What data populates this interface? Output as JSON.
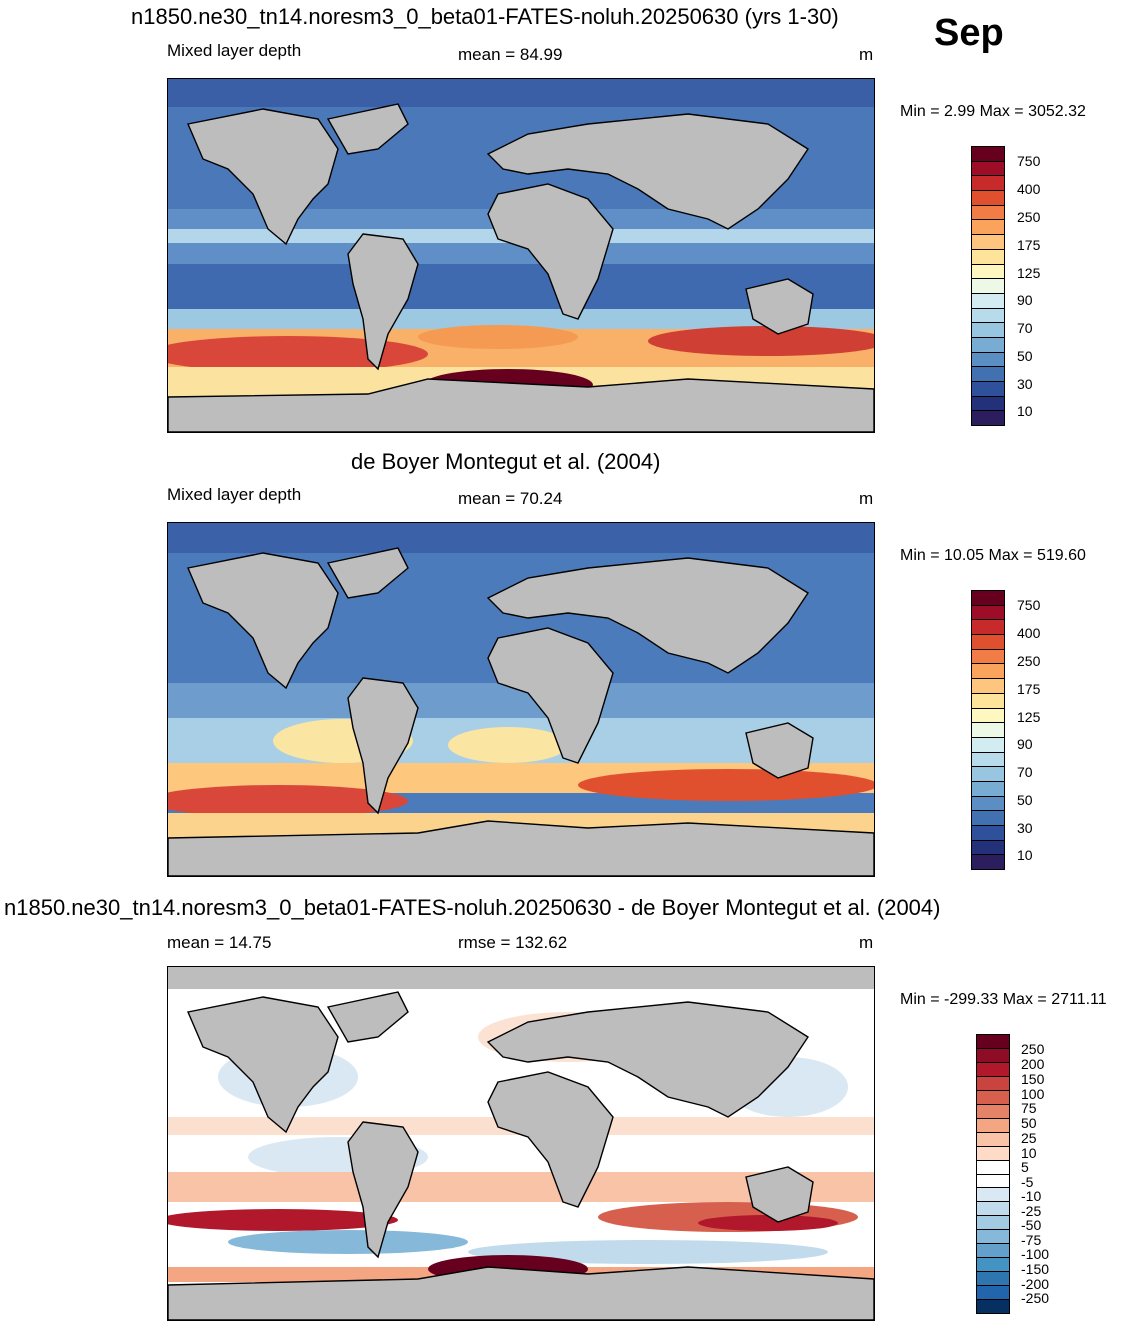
{
  "month": "Sep",
  "panels": [
    {
      "title": "n1850.ne30_tn14.noresm3_0_beta01-FATES-noluh.20250630 (yrs 1-30)",
      "left_label": "Mixed layer depth",
      "center_label": "mean =  84.99",
      "units": "m",
      "minmax": "Min =   2.99 Max = 3052.32"
    },
    {
      "title": "de Boyer Montegut et al. (2004)",
      "left_label": "Mixed layer depth",
      "center_label": "mean =  70.24",
      "units": "m",
      "minmax": "Min =  10.05 Max = 519.60"
    },
    {
      "title": "n1850.ne30_tn14.noresm3_0_beta01-FATES-noluh.20250630 - de Boyer Montegut et al. (2004)",
      "left_label": "mean =  14.75",
      "center_label": "rmse = 132.62",
      "units": "m",
      "minmax": "Min = -299.33 Max = 2711.11"
    }
  ],
  "mld_colorbar": {
    "labels": [
      "750",
      "400",
      "250",
      "175",
      "125",
      "90",
      "70",
      "50",
      "30",
      "10"
    ],
    "colors": [
      "#67001f",
      "#9e0d28",
      "#c62a2b",
      "#e0502f",
      "#f17c45",
      "#f9a35c",
      "#fdc57d",
      "#fee39a",
      "#fff7c0",
      "#eef8e6",
      "#d3ecf1",
      "#b7dbea",
      "#98c6e0",
      "#79acd3",
      "#5b8fc4",
      "#4271b2",
      "#2f509b",
      "#23307a",
      "#2b1d5e"
    ]
  },
  "diff_colorbar": {
    "labels": [
      "250",
      "200",
      "150",
      "100",
      "75",
      "50",
      "25",
      "10",
      "5",
      "-5",
      "-10",
      "-25",
      "-50",
      "-75",
      "-100",
      "-150",
      "-200",
      "-250"
    ],
    "colors": [
      "#67001f",
      "#8e0c25",
      "#b2182b",
      "#c9443f",
      "#d6604d",
      "#e58368",
      "#f4a582",
      "#f8c3a6",
      "#fddbc7",
      "#ffffff",
      "#ffffff",
      "#d9e8f2",
      "#c1dbec",
      "#a3cbe2",
      "#86b9d9",
      "#63a0cc",
      "#4393c3",
      "#2f75b0",
      "#2166ac",
      "#053061"
    ]
  }
}
